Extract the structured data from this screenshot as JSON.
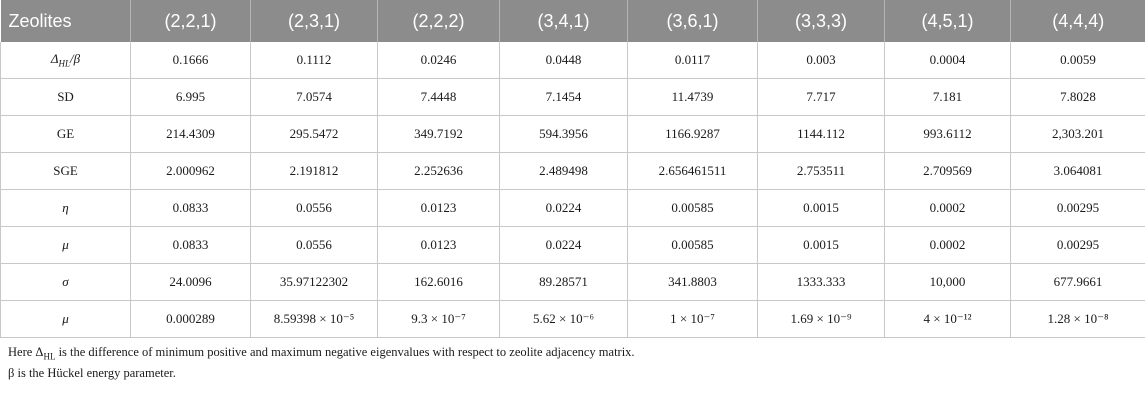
{
  "table": {
    "headers": [
      "Zeolites",
      "(2,2,1)",
      "(2,3,1)",
      "(2,2,2)",
      "(3,4,1)",
      "(3,6,1)",
      "(3,3,3)",
      "(4,5,1)",
      "(4,4,4)"
    ],
    "rows": [
      {
        "label": "Δ_HL/β",
        "italic": true,
        "values": [
          "0.1666",
          "0.1112",
          "0.0246",
          "0.0448",
          "0.0117",
          "0.003",
          "0.0004",
          "0.0059"
        ]
      },
      {
        "label": "SD",
        "italic": false,
        "values": [
          "6.995",
          "7.0574",
          "7.4448",
          "7.1454",
          "11.4739",
          "7.717",
          "7.181",
          "7.8028"
        ]
      },
      {
        "label": "GE",
        "italic": false,
        "values": [
          "214.4309",
          "295.5472",
          "349.7192",
          "594.3956",
          "1166.9287",
          "1144.112",
          "993.6112",
          "2,303.201"
        ]
      },
      {
        "label": "SGE",
        "italic": false,
        "values": [
          "2.000962",
          "2.191812",
          "2.252636",
          "2.489498",
          "2.656461511",
          "2.753511",
          "2.709569",
          "3.064081"
        ]
      },
      {
        "label": "η",
        "italic": true,
        "values": [
          "0.0833",
          "0.0556",
          "0.0123",
          "0.0224",
          "0.00585",
          "0.0015",
          "0.0002",
          "0.00295"
        ]
      },
      {
        "label": "μ",
        "italic": true,
        "values": [
          "0.0833",
          "0.0556",
          "0.0123",
          "0.0224",
          "0.00585",
          "0.0015",
          "0.0002",
          "0.00295"
        ]
      },
      {
        "label": "σ",
        "italic": true,
        "values": [
          "24.0096",
          "35.97122302",
          "162.6016",
          "89.28571",
          "341.8803",
          "1333.333",
          "10,000",
          "677.9661"
        ]
      },
      {
        "label": "μ",
        "italic": true,
        "values": [
          "0.000289",
          "8.59398 × 10⁻⁵",
          "9.3 × 10⁻⁷",
          "5.62 × 10⁻⁶",
          "1 × 10⁻⁷",
          "1.69 × 10⁻⁹",
          "4 × 10⁻¹²",
          "1.28 × 10⁻⁸"
        ]
      }
    ]
  },
  "notes": [
    "Here Δ_HL is the difference of minimum positive and maximum negative eigenvalues with respect to zeolite adjacency matrix.",
    "β is the Hückel energy parameter."
  ]
}
